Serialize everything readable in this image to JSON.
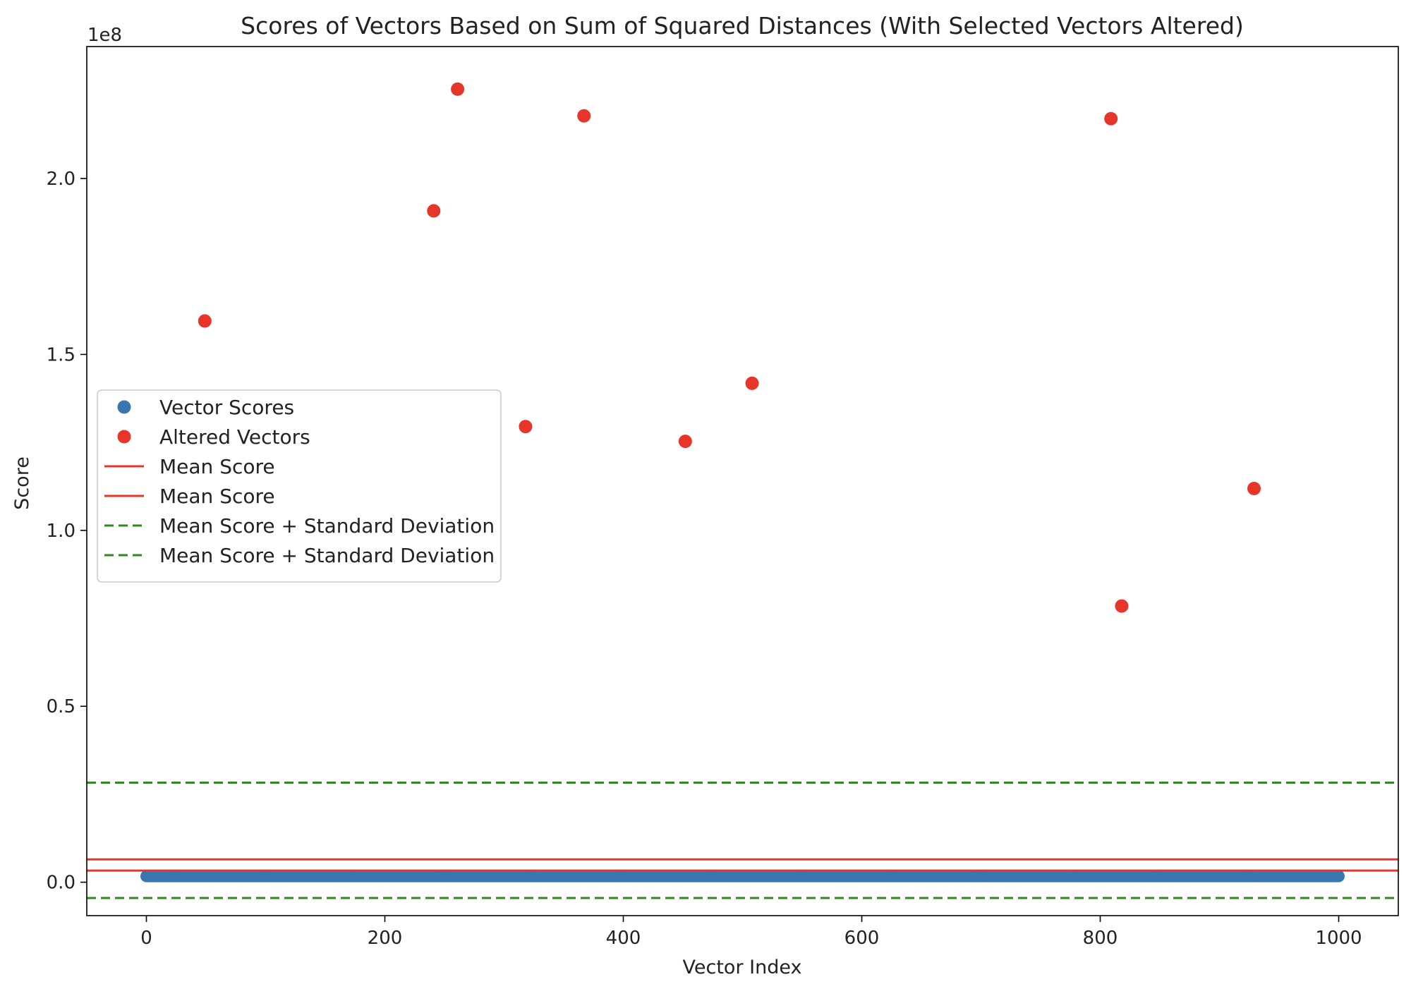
{
  "chart_data": {
    "type": "scatter",
    "title": "Scores of Vectors Based on Sum of Squared Distances (With Selected Vectors Altered)",
    "xlabel": "Vector Index",
    "ylabel": "Score",
    "offset_text": "1e8",
    "xlim": [
      -50,
      1050
    ],
    "ylim": [
      -9500000,
      237500000
    ],
    "x_ticks": [
      0,
      200,
      400,
      600,
      800,
      1000
    ],
    "x_tick_labels": [
      "0",
      "200",
      "400",
      "600",
      "800",
      "1000"
    ],
    "y_ticks": [
      0,
      50000000,
      100000000,
      150000000,
      200000000
    ],
    "y_tick_labels": [
      "0.0",
      "0.5",
      "1.0",
      "1.5",
      "2.0"
    ],
    "grid": false,
    "legend_position": "center-left",
    "series": [
      {
        "name": "Vector Scores",
        "kind": "scatter",
        "color": "#3a76b0",
        "x_range": [
          0,
          1000
        ],
        "count": 1000,
        "approx_value": 1700000
      },
      {
        "name": "Altered Vectors",
        "kind": "scatter",
        "color": "#e8352a",
        "x": [
          49,
          241,
          261,
          318,
          367,
          452,
          508,
          809,
          818,
          929
        ],
        "y": [
          159500000,
          190800000,
          225400000,
          129500000,
          217800000,
          125300000,
          141800000,
          217000000,
          78500000,
          111900000
        ]
      },
      {
        "name": "Mean Score",
        "kind": "hline",
        "color": "#e8352a",
        "y": 3300000
      },
      {
        "name": "Mean Score",
        "kind": "hline",
        "color": "#e8352a",
        "y": 6500000
      },
      {
        "name": "Mean Score + Standard Deviation",
        "kind": "hline-dashed",
        "color": "#2e8a1e",
        "y": 28300000
      },
      {
        "name": "Mean Score + Standard Deviation",
        "kind": "hline-dashed",
        "color": "#2e8a1e",
        "y": -4500000
      }
    ]
  }
}
